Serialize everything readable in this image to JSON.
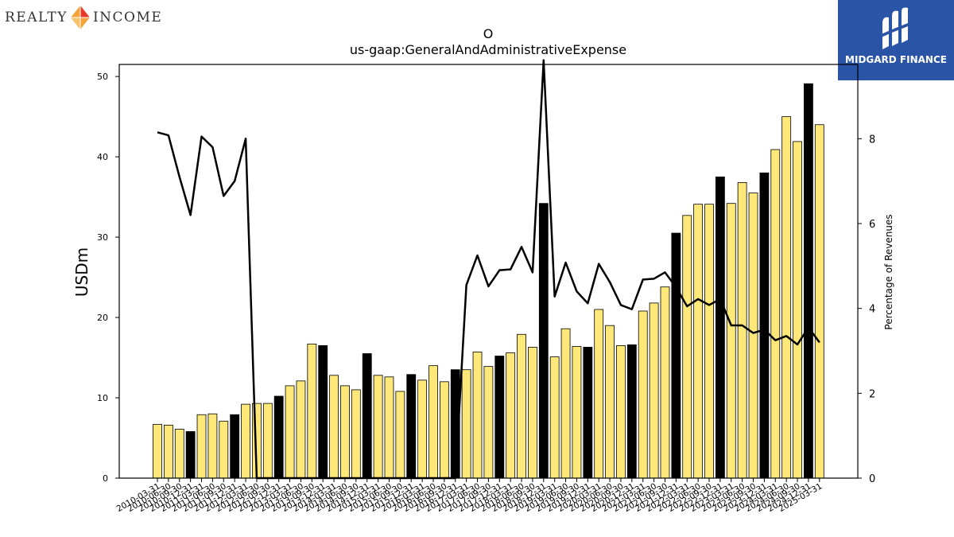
{
  "logos": {
    "left": {
      "word1": "REALTY",
      "word2": "INCOME"
    },
    "right": {
      "text": "MIDGARD FINANCE"
    }
  },
  "chart_data": {
    "type": "bar",
    "title": "O",
    "subtitle": "us-gaap:GeneralAndAdministrativeExpense",
    "ylabel": "USDm",
    "y2label": "Percentage of Revenues",
    "ylim": [
      0,
      51.5
    ],
    "y2lim": [
      0,
      9.75
    ],
    "yticks": [
      0,
      10,
      20,
      30,
      40,
      50
    ],
    "y2ticks": [
      0,
      2,
      4,
      6,
      8
    ],
    "grid": false,
    "x_labels": [
      "2010-03-31",
      "2010-06-30",
      "2010-09-30",
      "2010-12-31",
      "2011-03-31",
      "2011-06-30",
      "2011-09-30",
      "2011-12-31",
      "2012-03-31",
      "2012-06-30",
      "2012-09-30",
      "2012-12-31",
      "2013-03-31",
      "2013-06-30",
      "2013-09-30",
      "2013-12-31",
      "2014-03-31",
      "2014-06-30",
      "2014-09-30",
      "2014-12-31",
      "2015-03-31",
      "2015-06-30",
      "2015-09-30",
      "2015-12-31",
      "2016-03-31",
      "2016-06-30",
      "2016-09-30",
      "2016-12-31",
      "2017-03-31",
      "2017-06-30",
      "2017-09-30",
      "2017-12-31",
      "2018-03-31",
      "2018-06-30",
      "2018-09-30",
      "2018-12-31",
      "2019-03-31",
      "2019-06-30",
      "2019-09-30",
      "2019-12-31",
      "2020-03-31",
      "2020-06-30",
      "2020-09-30",
      "2020-12-31",
      "2021-03-31",
      "2021-06-30",
      "2021-09-30",
      "2021-12-31",
      "2022-03-31",
      "2022-06-30",
      "2022-09-30",
      "2022-12-31",
      "2023-03-31",
      "2023-06-30",
      "2023-09-30",
      "2023-12-31",
      "2024-03-31",
      "2024-06-30",
      "2024-09-30",
      "2024-12-31",
      "2025-03-31"
    ],
    "series": [
      {
        "kind": "bar",
        "axis": "left",
        "values": [
          6.7,
          6.6,
          6.1,
          5.8,
          7.9,
          8.0,
          7.1,
          7.9,
          9.2,
          9.3,
          9.3,
          10.2,
          11.5,
          12.1,
          16.7,
          16.5,
          12.8,
          11.5,
          11.0,
          15.5,
          12.8,
          12.6,
          10.8,
          12.9,
          12.2,
          14.0,
          12.0,
          13.5,
          13.5,
          15.7,
          13.9,
          15.2,
          15.6,
          17.9,
          16.3,
          34.2,
          15.1,
          18.6,
          16.4,
          16.3,
          21.0,
          19.0,
          16.5,
          16.6,
          20.8,
          21.8,
          23.8,
          30.5,
          32.7,
          34.1,
          34.1,
          37.5,
          34.2,
          36.8,
          35.5,
          38.0,
          40.9,
          45.0,
          41.9,
          49.1,
          44.0
        ],
        "colors": {
          "normal": "#fde879",
          "year_end": "#000000"
        }
      },
      {
        "kind": "line",
        "axis": "right",
        "color": "#000000",
        "values": [
          8.15,
          8.08,
          7.1,
          6.2,
          8.05,
          7.8,
          6.65,
          7.0,
          8.0,
          0,
          0,
          0,
          0,
          0,
          0,
          0,
          0,
          0,
          0,
          0,
          0,
          0,
          0,
          0,
          0,
          0,
          0,
          0,
          4.55,
          5.25,
          4.52,
          4.9,
          4.92,
          5.45,
          4.85,
          9.85,
          4.28,
          5.08,
          4.4,
          4.12,
          5.05,
          4.62,
          4.08,
          3.98,
          4.68,
          4.7,
          4.85,
          4.5,
          4.05,
          4.22,
          4.08,
          4.22,
          3.6,
          3.6,
          3.42,
          3.5,
          3.25,
          3.35,
          3.15,
          3.55,
          3.2
        ]
      }
    ]
  }
}
